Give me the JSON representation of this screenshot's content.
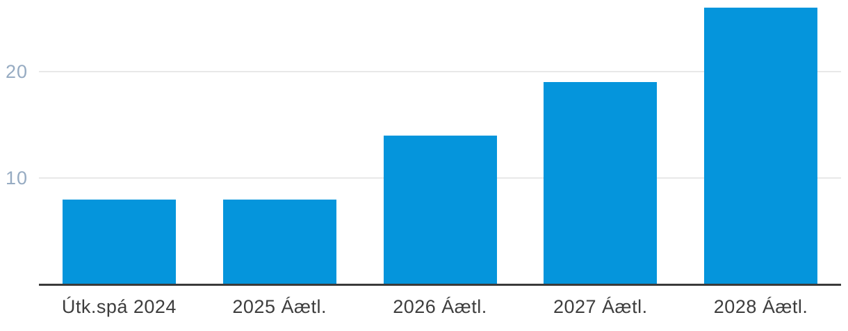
{
  "chart_data": {
    "type": "bar",
    "categories": [
      "Útk.spá 2024",
      "2025 Áætl.",
      "2026 Áætl.",
      "2027 Áætl.",
      "2028 Áætl."
    ],
    "values": [
      8,
      8,
      14,
      19,
      26
    ],
    "title": "",
    "xlabel": "",
    "ylabel": "",
    "ylim": [
      0,
      26.73
    ],
    "yticks": [
      10,
      20
    ],
    "grid": true,
    "legend": false,
    "bar_color": "#0595dc",
    "gridline_color": "#e8e8e8",
    "axis_line_color": "#3a3a3a",
    "ytick_label_color": "#96abc2",
    "xtick_label_color": "#3d3d3d",
    "background_color": "#ffffff"
  }
}
